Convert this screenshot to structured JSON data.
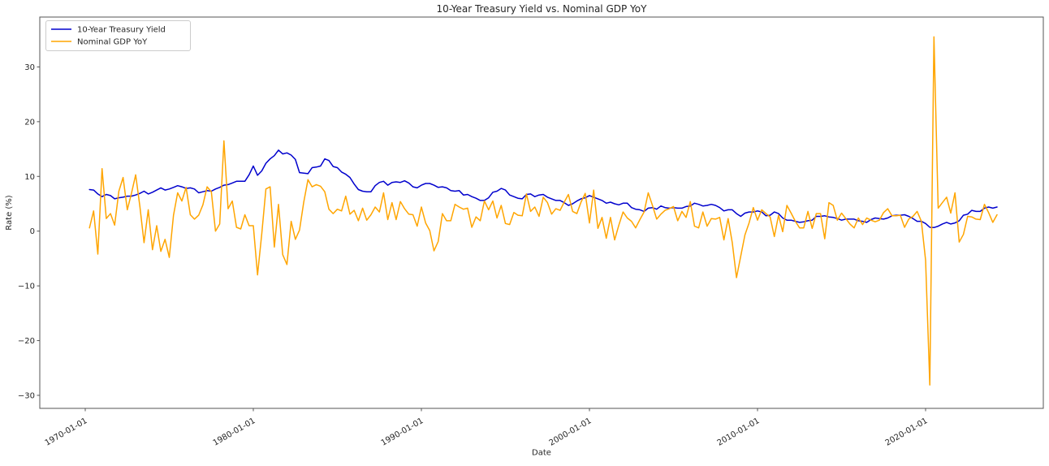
{
  "figure": {
    "title": "10-Year Treasury Yield vs. Nominal GDP YoY",
    "xlabel": "Date",
    "ylabel": "Rate (%)"
  },
  "legend": {
    "position": "upper left",
    "items": [
      {
        "label": "10-Year Treasury Yield",
        "color": "#0000cd"
      },
      {
        "label": "Nominal GDP YoY",
        "color": "#ffa500"
      }
    ]
  },
  "chart_data": {
    "type": "line",
    "title": "10-Year Treasury Yield vs. Nominal GDP YoY",
    "xlabel": "Date",
    "ylabel": "Rate (%)",
    "grid": false,
    "background": "#ffffff",
    "spine_color": "#555555",
    "legend_position": "upper left",
    "x_start_year": 1970.25,
    "x_step_years": 0.25,
    "x_tick_rotation_deg": 30,
    "ylim": [
      -33,
      39.2
    ],
    "x_ticks": [
      {
        "year": 1970,
        "label": "1970-01-01"
      },
      {
        "year": 1980,
        "label": "1980-01-01"
      },
      {
        "year": 1990,
        "label": "1990-01-01"
      },
      {
        "year": 2000,
        "label": "2000-01-01"
      },
      {
        "year": 2010,
        "label": "2010-01-01"
      },
      {
        "year": 2020,
        "label": "2020-01-01"
      }
    ],
    "y_ticks": [
      {
        "value": 30,
        "label": "30"
      },
      {
        "value": 20,
        "label": "20"
      },
      {
        "value": 10,
        "label": "10"
      },
      {
        "value": 0,
        "label": "0"
      },
      {
        "value": -10,
        "label": "−10"
      },
      {
        "value": -20,
        "label": "−20"
      },
      {
        "value": -30,
        "label": "−30"
      }
    ],
    "series": [
      {
        "name": "10-Year Treasury Yield",
        "color": "#0000cd",
        "values": [
          7.6,
          7.5,
          6.8,
          6.3,
          6.7,
          6.5,
          5.9,
          6.1,
          6.2,
          6.4,
          6.4,
          6.6,
          6.9,
          7.3,
          6.8,
          7.1,
          7.5,
          7.9,
          7.5,
          7.7,
          8.0,
          8.3,
          8.1,
          7.8,
          7.9,
          7.7,
          7.0,
          7.2,
          7.4,
          7.3,
          7.7,
          8.0,
          8.4,
          8.5,
          8.8,
          9.1,
          9.1,
          9.1,
          10.3,
          11.9,
          10.2,
          11.0,
          12.4,
          13.2,
          13.8,
          14.8,
          14.1,
          14.3,
          13.9,
          13.1,
          10.7,
          10.6,
          10.5,
          11.6,
          11.7,
          11.9,
          13.2,
          12.9,
          11.8,
          11.6,
          10.8,
          10.4,
          9.8,
          8.6,
          7.6,
          7.3,
          7.2,
          7.2,
          8.3,
          8.9,
          9.1,
          8.4,
          8.9,
          9.0,
          8.9,
          9.2,
          8.8,
          8.1,
          7.9,
          8.4,
          8.7,
          8.7,
          8.4,
          8.0,
          8.1,
          7.9,
          7.4,
          7.3,
          7.4,
          6.6,
          6.7,
          6.3,
          6.0,
          5.6,
          5.6,
          6.1,
          7.1,
          7.3,
          7.8,
          7.5,
          6.6,
          6.3,
          6.0,
          5.9,
          6.7,
          6.8,
          6.3,
          6.6,
          6.7,
          6.2,
          5.9,
          5.6,
          5.6,
          5.2,
          4.7,
          5.0,
          5.5,
          5.9,
          6.1,
          6.5,
          6.2,
          5.9,
          5.6,
          5.1,
          5.3,
          5.0,
          4.8,
          5.1,
          5.1,
          4.3,
          4.0,
          3.9,
          3.6,
          4.2,
          4.3,
          4.0,
          4.6,
          4.3,
          4.2,
          4.3,
          4.2,
          4.2,
          4.5,
          4.6,
          5.1,
          4.9,
          4.6,
          4.7,
          4.9,
          4.7,
          4.3,
          3.7,
          3.9,
          3.9,
          3.2,
          2.7,
          3.3,
          3.5,
          3.5,
          3.7,
          3.5,
          2.8,
          2.9,
          3.5,
          3.2,
          2.4,
          2.0,
          2.0,
          1.8,
          1.6,
          1.7,
          1.9,
          2.0,
          2.7,
          2.7,
          2.8,
          2.6,
          2.5,
          2.3,
          2.0,
          2.2,
          2.2,
          2.2,
          1.9,
          1.8,
          1.6,
          2.1,
          2.4,
          2.3,
          2.2,
          2.4,
          2.8,
          2.9,
          2.9,
          3.0,
          2.7,
          2.3,
          1.8,
          1.8,
          1.4,
          0.7,
          0.65,
          0.9,
          1.3,
          1.6,
          1.3,
          1.5,
          1.9,
          2.9,
          3.1,
          3.8,
          3.6,
          3.6,
          4.2,
          4.4,
          4.2,
          4.4
        ]
      },
      {
        "name": "Nominal GDP YoY",
        "color": "#ffa500",
        "values": [
          0.6,
          3.7,
          -4.2,
          11.4,
          2.3,
          3.2,
          1.1,
          7.3,
          9.8,
          3.9,
          6.9,
          10.3,
          4.5,
          -2.1,
          3.9,
          -3.4,
          1.0,
          -3.7,
          -1.5,
          -4.8,
          2.9,
          7.0,
          5.5,
          8.0,
          3.0,
          2.2,
          2.9,
          4.8,
          8.1,
          7.2,
          0.0,
          1.3,
          16.5,
          4.1,
          5.5,
          0.7,
          0.4,
          3.0,
          1.0,
          1.0,
          -8.0,
          -0.5,
          7.7,
          8.1,
          -2.9,
          4.9,
          -4.3,
          -6.1,
          1.8,
          -1.5,
          0.2,
          5.3,
          9.4,
          8.1,
          8.5,
          8.2,
          7.2,
          4.0,
          3.2,
          4.0,
          3.7,
          6.4,
          3.1,
          3.8,
          1.9,
          4.2,
          2.0,
          3.0,
          4.4,
          3.5,
          7.0,
          2.1,
          5.2,
          2.1,
          5.4,
          4.1,
          3.1,
          3.0,
          0.9,
          4.4,
          1.5,
          0.1,
          -3.6,
          -1.9,
          3.2,
          1.9,
          1.9,
          4.9,
          4.4,
          4.0,
          4.2,
          0.7,
          2.6,
          1.9,
          5.5,
          3.9,
          5.5,
          2.4,
          4.7,
          1.4,
          1.2,
          3.4,
          2.9,
          2.8,
          6.8,
          3.6,
          4.4,
          2.7,
          6.2,
          5.2,
          3.1,
          4.1,
          3.8,
          5.3,
          6.7,
          3.6,
          3.2,
          5.3,
          6.9,
          1.5,
          7.5,
          0.5,
          2.5,
          -1.3,
          2.5,
          -1.6,
          1.1,
          3.5,
          2.4,
          1.8,
          0.6,
          2.1,
          3.5,
          7.0,
          4.7,
          2.2,
          3.1,
          3.8,
          4.1,
          4.5,
          1.9,
          3.6,
          2.5,
          5.4,
          0.9,
          0.6,
          3.5,
          0.9,
          2.3,
          2.2,
          2.5,
          -1.6,
          2.3,
          -2.1,
          -8.5,
          -4.6,
          -0.7,
          1.5,
          4.3,
          2.0,
          3.9,
          3.2,
          2.6,
          -1.0,
          2.9,
          -0.1,
          4.7,
          3.3,
          1.8,
          0.6,
          0.6,
          3.6,
          0.5,
          3.2,
          3.2,
          -1.4,
          5.2,
          4.7,
          2.0,
          3.3,
          2.3,
          1.3,
          0.6,
          2.4,
          1.2,
          2.4,
          2.0,
          1.7,
          2.0,
          3.4,
          4.1,
          2.8,
          2.8,
          2.9,
          0.7,
          2.2,
          2.7,
          3.6,
          1.8,
          -5.3,
          -28.1,
          35.5,
          4.2,
          5.2,
          6.2,
          3.3,
          7.0,
          -2.0,
          -0.6,
          2.7,
          2.6,
          2.2,
          2.1,
          4.9,
          3.4,
          1.6,
          3.0
        ]
      }
    ]
  }
}
